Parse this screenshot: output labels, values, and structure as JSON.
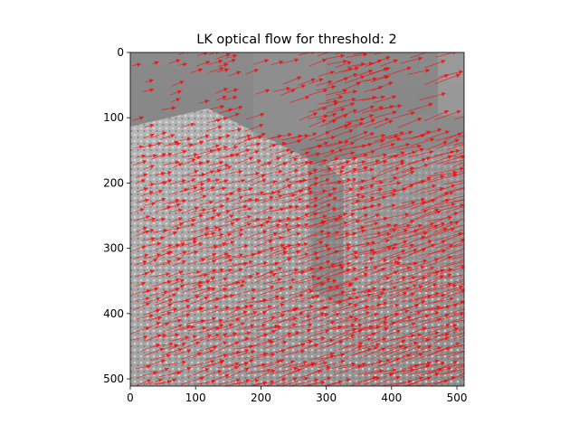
{
  "chart_data": {
    "type": "quiver",
    "title": "LK optical flow for threshold: 2",
    "xlabel": "",
    "ylabel": "",
    "xlim": [
      0,
      511
    ],
    "ylim": [
      511,
      0
    ],
    "y_axis_inverted": true,
    "x_ticks": [
      0,
      100,
      200,
      300,
      400,
      500
    ],
    "y_ticks": [
      0,
      100,
      200,
      300,
      400,
      500
    ],
    "grid": false,
    "legend": "none",
    "background": "grayscale-image",
    "arrow_color": "#ff0000",
    "flow_direction": "rightward, slightly upward; magnitudes grow toward the right and bottom"
  }
}
